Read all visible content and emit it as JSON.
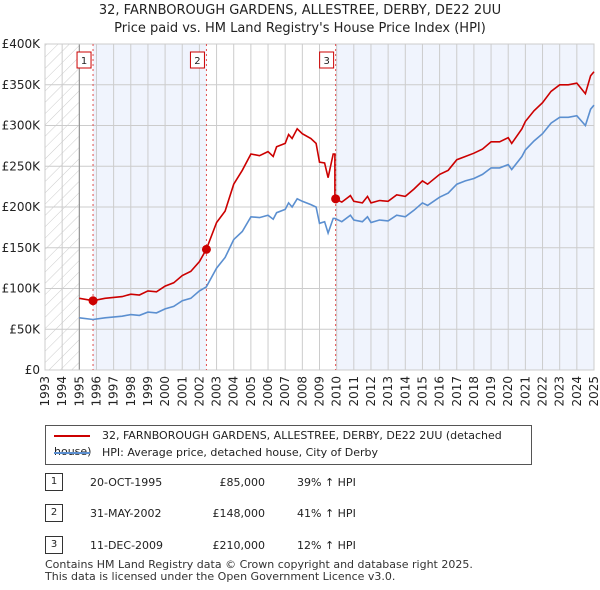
{
  "chart_data": {
    "type": "line",
    "title": "32, FARNBOROUGH GARDENS, ALLESTREE, DERBY, DE22 2UU",
    "subtitle": "Price paid vs. HM Land Registry's House Price Index (HPI)",
    "xlim": [
      1993,
      2025
    ],
    "ylim": [
      0,
      400000
    ],
    "yticks": [
      {
        "v": 0,
        "label": "£0"
      },
      {
        "v": 50000,
        "label": "£50K"
      },
      {
        "v": 100000,
        "label": "£100K"
      },
      {
        "v": 150000,
        "label": "£150K"
      },
      {
        "v": 200000,
        "label": "£200K"
      },
      {
        "v": 250000,
        "label": "£250K"
      },
      {
        "v": 300000,
        "label": "£300K"
      },
      {
        "v": 350000,
        "label": "£350K"
      },
      {
        "v": 400000,
        "label": "£400K"
      }
    ],
    "xticks": [
      "1993",
      "1994",
      "1995",
      "1996",
      "1997",
      "1998",
      "1999",
      "2000",
      "2001",
      "2002",
      "2003",
      "2004",
      "2005",
      "2006",
      "2007",
      "2008",
      "2009",
      "2010",
      "2011",
      "2012",
      "2013",
      "2014",
      "2015",
      "2016",
      "2017",
      "2018",
      "2019",
      "2020",
      "2021",
      "2022",
      "2023",
      "2024",
      "2025"
    ],
    "x": [
      1995.0,
      1995.8,
      1996.5,
      1997.5,
      1998.0,
      1998.5,
      1999.0,
      1999.5,
      2000.0,
      2000.5,
      2001.0,
      2001.5,
      2002.0,
      2002.4,
      2003.0,
      2003.5,
      2004.0,
      2004.5,
      2005.0,
      2005.5,
      2006.0,
      2006.3,
      2006.5,
      2007.0,
      2007.2,
      2007.4,
      2007.7,
      2008.0,
      2008.5,
      2008.8,
      2009.0,
      2009.3,
      2009.5,
      2009.8,
      2009.9,
      2010.3,
      2010.8,
      2011.0,
      2011.5,
      2011.8,
      2012.0,
      2012.5,
      2013.0,
      2013.5,
      2014.0,
      2014.5,
      2015.0,
      2015.3,
      2016.0,
      2016.5,
      2017.0,
      2017.5,
      2018.0,
      2018.5,
      2019.0,
      2019.5,
      2020.0,
      2020.2,
      2020.8,
      2021.0,
      2021.5,
      2022.0,
      2022.5,
      2023.0,
      2023.5,
      2024.0,
      2024.5,
      2024.8,
      2025.0
    ],
    "series": [
      {
        "name": "32, FARNBOROUGH GARDENS, ALLESTREE, DERBY, DE22 2UU (detached house)",
        "color": "#cc0000",
        "values": [
          88000,
          85000,
          88000,
          90000,
          93000,
          92000,
          97000,
          96000,
          103000,
          107000,
          116000,
          121000,
          133000,
          148000,
          181000,
          195000,
          228000,
          245000,
          265000,
          263000,
          268000,
          262000,
          274000,
          278000,
          289000,
          284000,
          296000,
          290000,
          284000,
          278000,
          255000,
          254000,
          236000,
          265000,
          210000,
          206000,
          214000,
          207000,
          205000,
          213000,
          205000,
          208000,
          207000,
          215000,
          213000,
          222000,
          232000,
          228000,
          240000,
          245000,
          258000,
          262000,
          266000,
          271000,
          280000,
          280000,
          285000,
          278000,
          296000,
          305000,
          318000,
          328000,
          342000,
          350000,
          350000,
          352000,
          339000,
          361000,
          366000
        ]
      },
      {
        "name": "HPI: Average price, detached house, City of Derby",
        "color": "#5b8fd0",
        "values": [
          64000,
          62000,
          64000,
          66000,
          68000,
          67000,
          71000,
          70000,
          75000,
          78000,
          85000,
          88000,
          97000,
          102000,
          125000,
          138000,
          160000,
          170000,
          188000,
          187000,
          190000,
          185000,
          193000,
          197000,
          205000,
          200000,
          210000,
          207000,
          203000,
          200000,
          180000,
          182000,
          168000,
          186000,
          186000,
          182000,
          190000,
          184000,
          182000,
          188000,
          181000,
          184000,
          183000,
          190000,
          188000,
          196000,
          205000,
          202000,
          212000,
          217000,
          228000,
          232000,
          235000,
          240000,
          248000,
          248000,
          252000,
          246000,
          262000,
          270000,
          281000,
          290000,
          303000,
          310000,
          310000,
          312000,
          300000,
          320000,
          325000
        ]
      }
    ],
    "sales": [
      {
        "n": "1",
        "x": 1995.8,
        "date": "20-OCT-1995",
        "price_value": 85000,
        "price": "£85,000",
        "hpi": "39% ↑ HPI"
      },
      {
        "n": "2",
        "x": 2002.41,
        "date": "31-MAY-2002",
        "price_value": 148000,
        "price": "£148,000",
        "hpi": "41% ↑ HPI"
      },
      {
        "n": "3",
        "x": 2009.94,
        "date": "11-DEC-2009",
        "price_value": 210000,
        "price": "£210,000",
        "hpi": "12% ↑ HPI"
      }
    ]
  },
  "footer": [
    "Contains HM Land Registry data © Crown copyright and database right 2025.",
    "This data is licensed under the Open Government Licence v3.0."
  ]
}
